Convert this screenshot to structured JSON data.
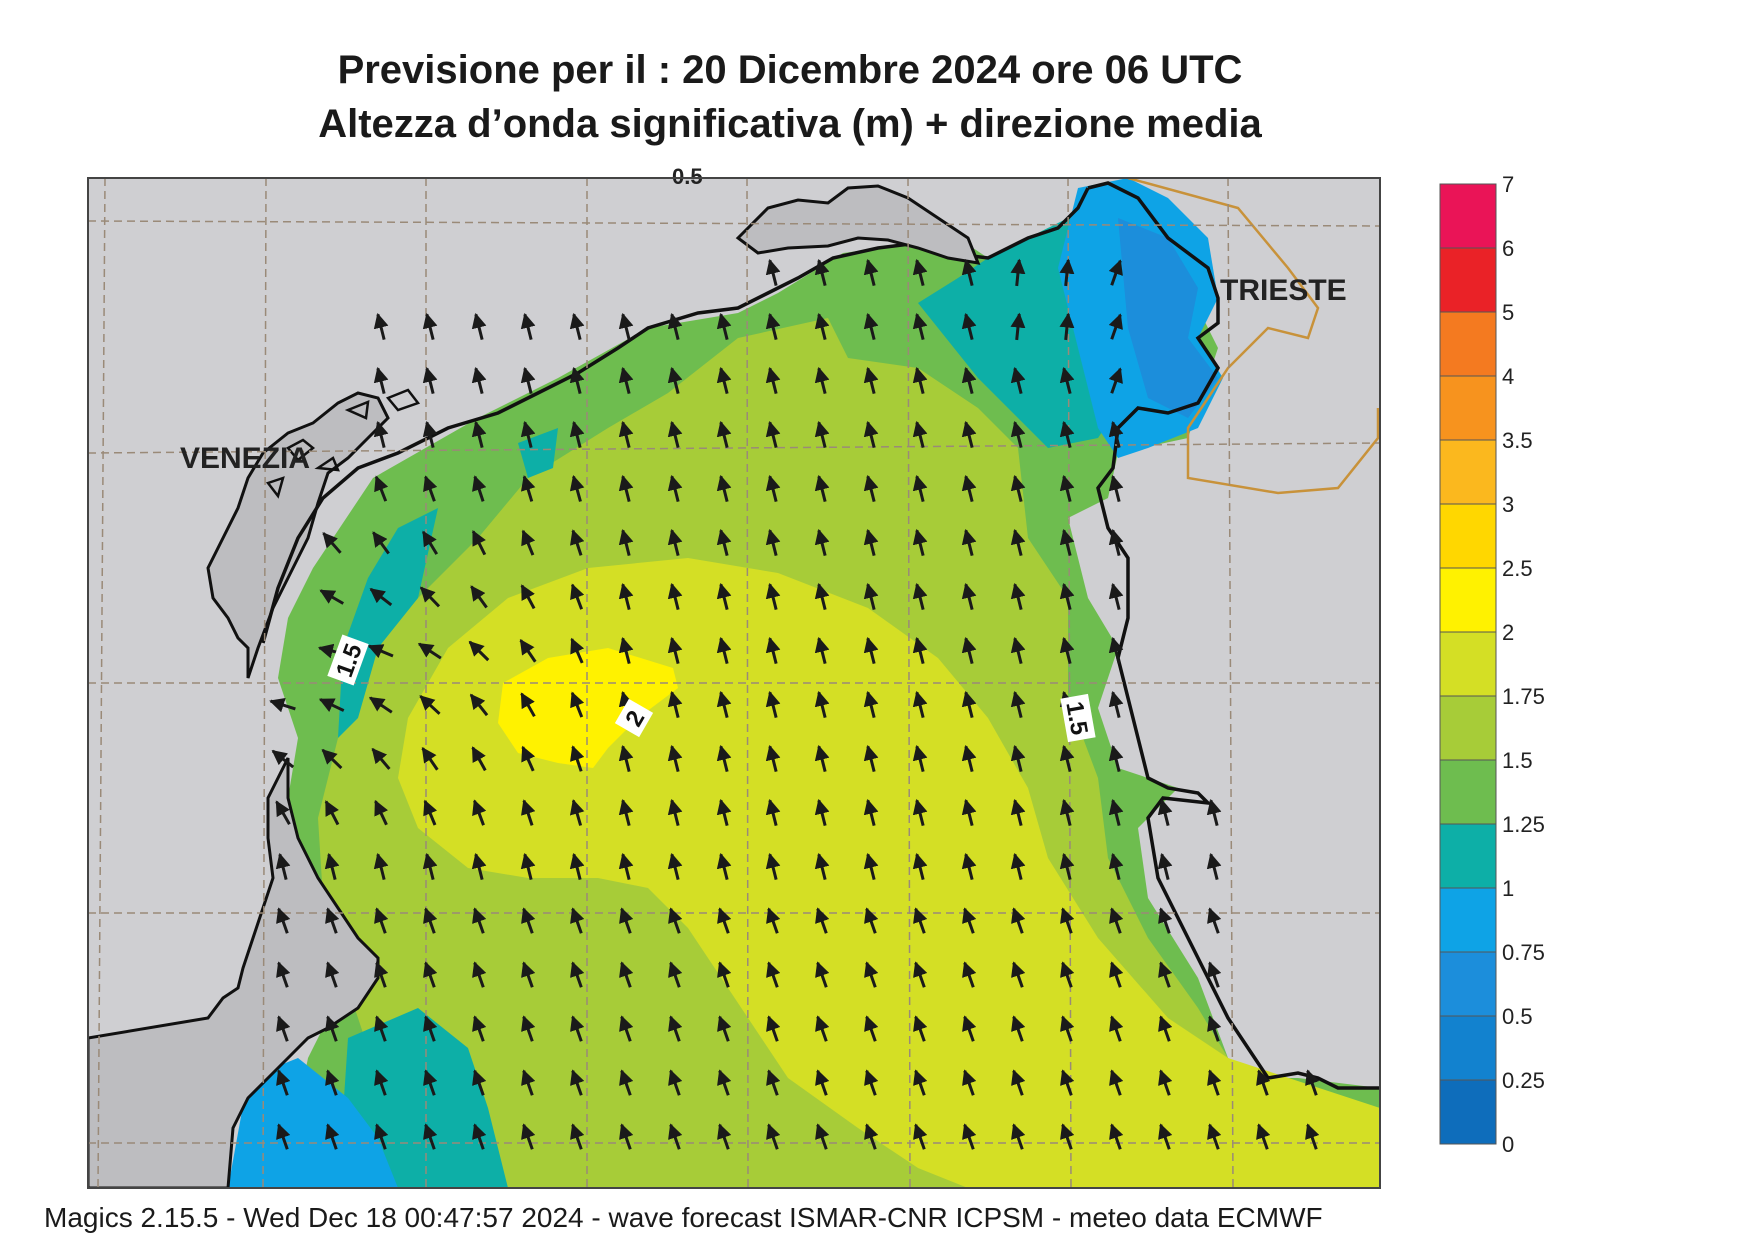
{
  "title": {
    "line1": "Previsione per il  :  20 Dicembre  2024   ore 06 UTC",
    "line2": "Altezza d’onda significativa (m) + direzione media"
  },
  "map": {
    "cities": {
      "venezia": "VENEZIA",
      "trieste": "TRIESTE"
    },
    "contour_labels": [
      "1.5",
      "2",
      "1.5",
      "0.5"
    ],
    "colors": {
      "land": "#cfcfd2",
      "coast": "#111111",
      "border": "#c8923a",
      "grid": "#9a8a78",
      "arrow": "#1a1a1a"
    }
  },
  "legend": {
    "levels": [
      "0",
      "0.25",
      "0.5",
      "0.75",
      "1",
      "1.25",
      "1.5",
      "1.75",
      "2",
      "2.5",
      "3",
      "3.5",
      "4",
      "5",
      "6",
      "7"
    ],
    "colors": [
      "#0e6dbb",
      "#1282cf",
      "#1c8edb",
      "#0ea3e6",
      "#0dafa7",
      "#6ebd4f",
      "#a7cc38",
      "#d4df25",
      "#fff200",
      "#ffd700",
      "#fbb81e",
      "#f7931e",
      "#f47a20",
      "#ea2227",
      "#ea1457"
    ]
  },
  "footer": "Magics 2.15.5 - Wed Dec 18 00:47:57 2024 - wave forecast  ISMAR-CNR  ICPSM - meteo data    ECMWF"
}
